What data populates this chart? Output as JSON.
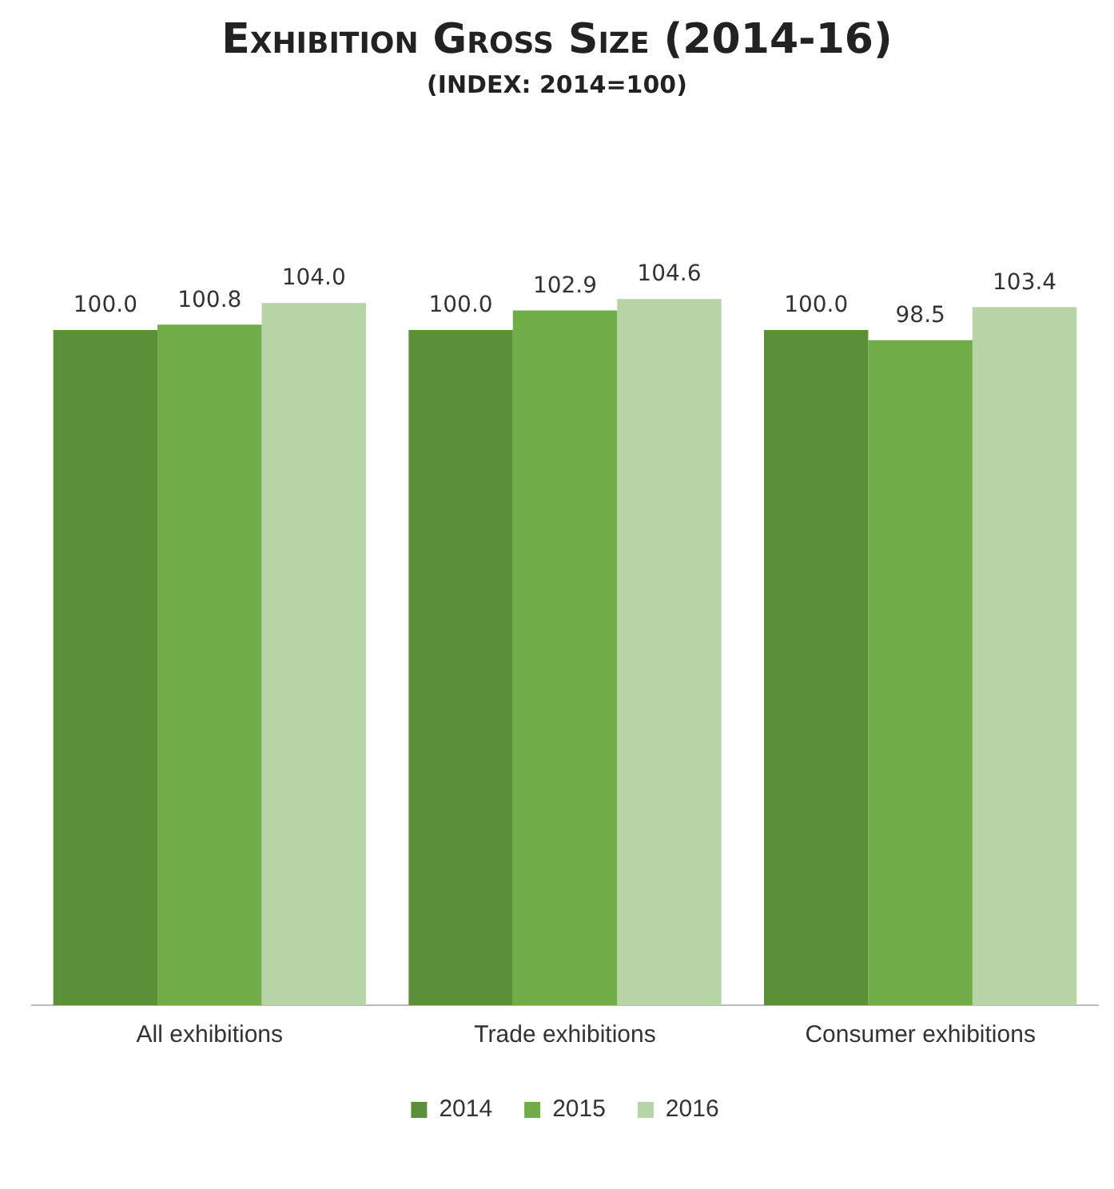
{
  "chart_data": {
    "type": "bar",
    "title": "Exhibition Gross Size (2014-16)",
    "subtitle": "(INDEX: 2014=100)",
    "categories": [
      "All exhibitions",
      "Trade exhibitions",
      "Consumer exhibitions"
    ],
    "series": [
      {
        "name": "2014",
        "color": "#5b9039",
        "values": [
          100.0,
          100.0,
          100.0
        ],
        "value_labels": [
          "100.0",
          "100.0",
          "100.0"
        ]
      },
      {
        "name": "2015",
        "color": "#70ad47",
        "values": [
          100.8,
          102.9,
          98.5
        ],
        "value_labels": [
          "100.8",
          "102.9",
          "98.5"
        ]
      },
      {
        "name": "2016",
        "color": "#b6d4a6",
        "values": [
          104.0,
          104.6,
          103.4
        ],
        "value_labels": [
          "104.0",
          "104.6",
          "103.4"
        ]
      }
    ],
    "legend": "bottom"
  }
}
